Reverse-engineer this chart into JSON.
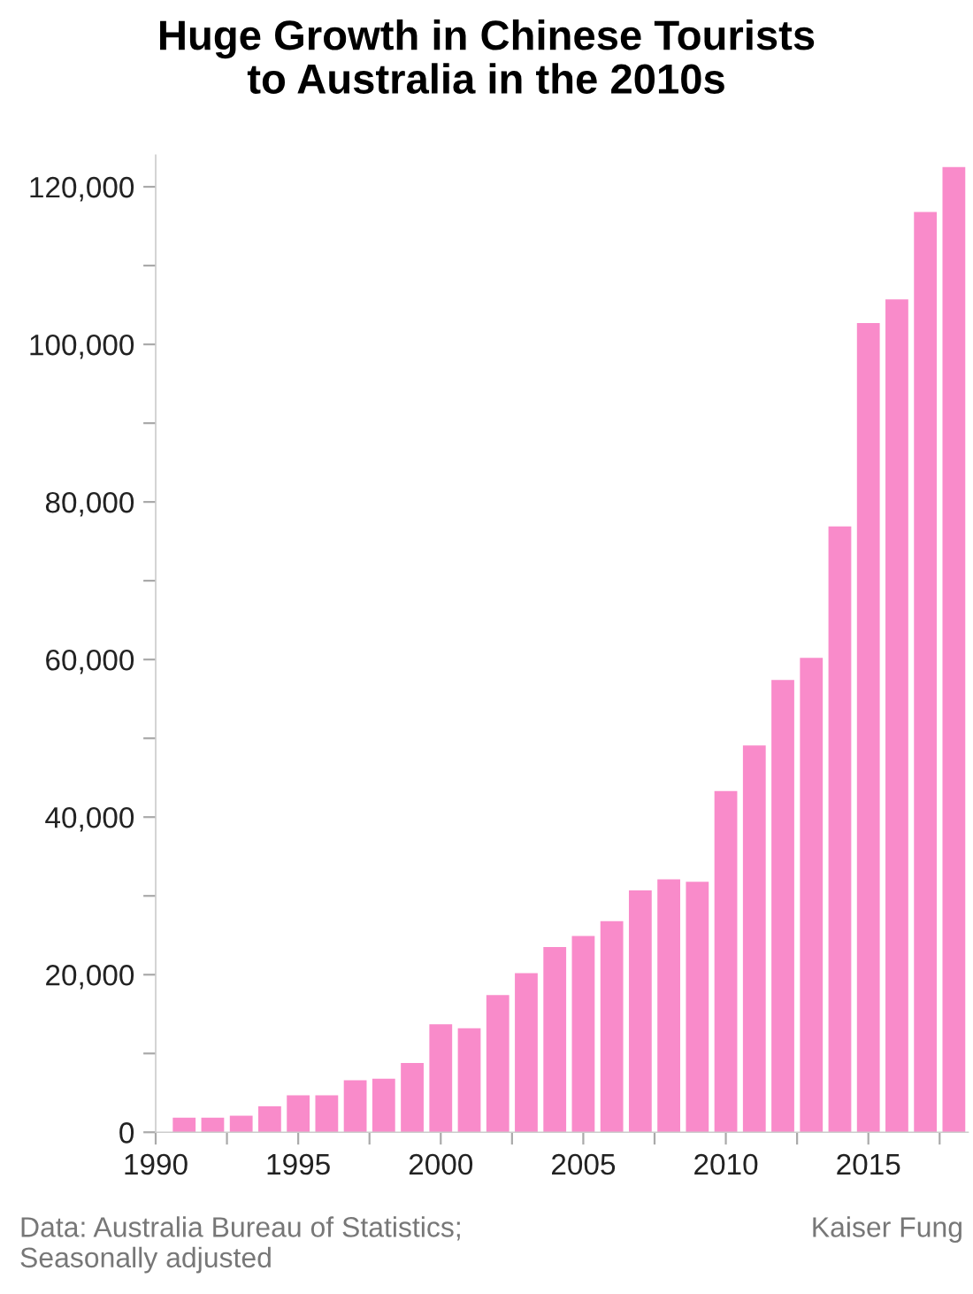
{
  "chart_data": {
    "type": "bar",
    "title": "Huge Growth in Chinese Tourists\nto Australia in the 2010s",
    "x": [
      1991,
      1992,
      1993,
      1994,
      1995,
      1996,
      1997,
      1998,
      1999,
      2000,
      2001,
      2002,
      2003,
      2004,
      2005,
      2006,
      2007,
      2008,
      2009,
      2010,
      2011,
      2012,
      2013,
      2014,
      2015,
      2016,
      2017,
      2018
    ],
    "values": [
      1850,
      1850,
      2100,
      3300,
      4700,
      4700,
      6600,
      6800,
      8800,
      13700,
      13200,
      17400,
      20200,
      23500,
      24900,
      26800,
      30700,
      32100,
      31800,
      43300,
      49100,
      57400,
      60200,
      76900,
      102700,
      105700,
      116800,
      122500
    ],
    "color": "#f98bca",
    "xlim": [
      1990,
      2018.5
    ],
    "xticks": [
      1990,
      {
        "value": 1992.5,
        "label": null
      },
      1995,
      {
        "value": 1997.5,
        "label": null
      },
      2000,
      {
        "value": 2002.5,
        "label": null
      },
      2005,
      {
        "value": 2007.5,
        "label": null
      },
      2010,
      {
        "value": 2012.5,
        "label": null
      },
      2015,
      {
        "value": 2017.5,
        "label": null
      }
    ],
    "ylim": [
      0,
      124000
    ],
    "yticks": [
      {
        "value": 0,
        "label": "0"
      },
      {
        "value": 10000,
        "label": null
      },
      {
        "value": 20000,
        "label": "20,000"
      },
      {
        "value": 30000,
        "label": null
      },
      {
        "value": 40000,
        "label": "40,000"
      },
      {
        "value": 50000,
        "label": null
      },
      {
        "value": 60000,
        "label": "60,000"
      },
      {
        "value": 70000,
        "label": null
      },
      {
        "value": 80000,
        "label": "80,000"
      },
      {
        "value": 90000,
        "label": null
      },
      {
        "value": 100000,
        "label": "100,000"
      },
      {
        "value": 110000,
        "label": null
      },
      {
        "value": 120000,
        "label": "120,000"
      }
    ],
    "grid": false,
    "annotations": [
      "Data: Australia Bureau of Statistics;\nSeasonally adjusted",
      "Kaiser Fung"
    ]
  }
}
